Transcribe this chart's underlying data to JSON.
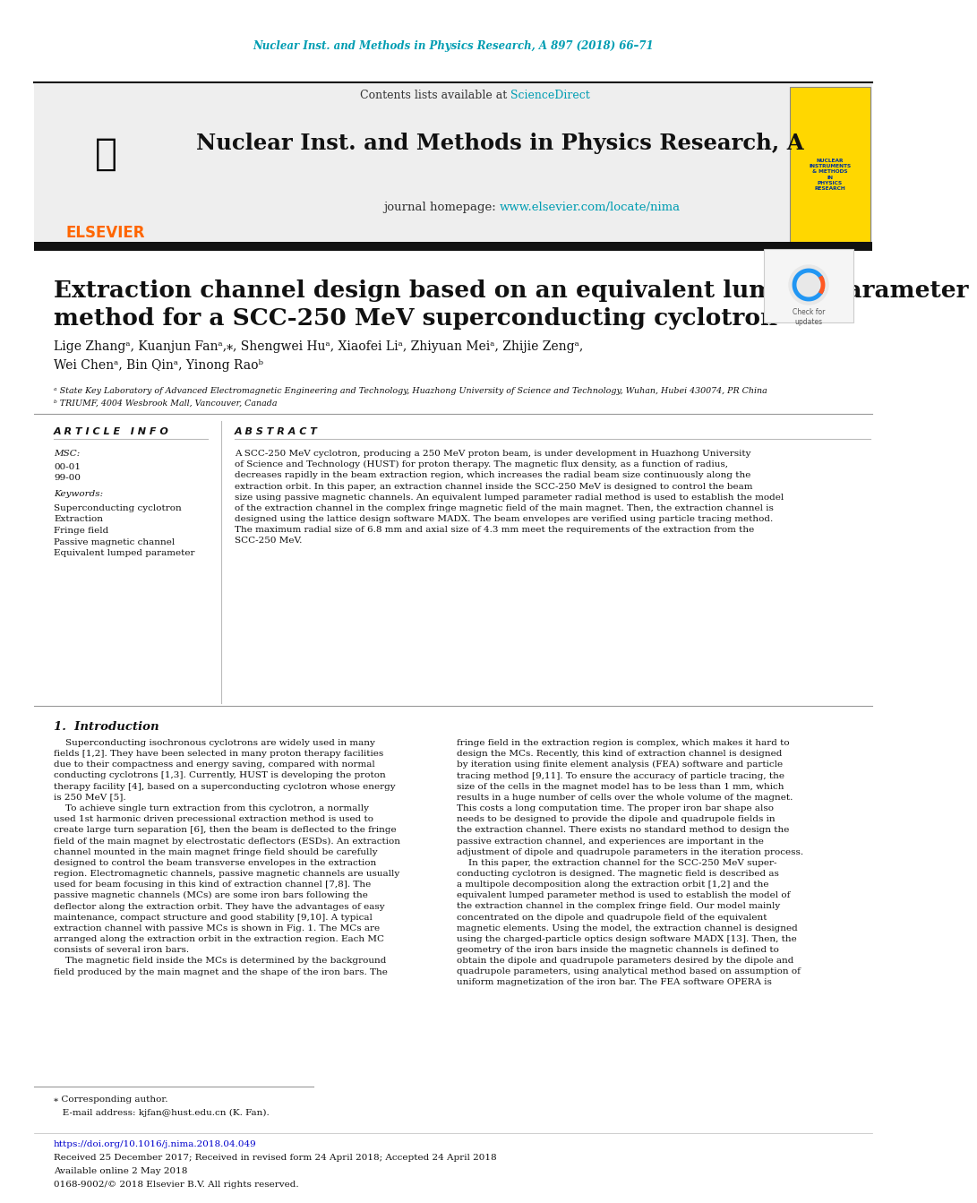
{
  "journal_header_text": "Nuclear Inst. and Methods in Physics Research, A 897 (2018) 66–71",
  "journal_header_color": "#009DB2",
  "contents_text": "Contents lists available at ",
  "sciencedirect_text": "ScienceDirect",
  "sciencedirect_color": "#009DB2",
  "journal_name": "Nuclear Inst. and Methods in Physics Research, A",
  "journal_homepage_prefix": "journal homepage: ",
  "journal_homepage_url": "www.elsevier.com/locate/nima",
  "journal_homepage_color": "#009DB2",
  "header_bg": "#EEEEEE",
  "black_bar_color": "#1A1A1A",
  "article_title": "Extraction channel design based on an equivalent lumped parameter\nmethod for a SCC-250 MeV superconducting cyclotron",
  "authors": "Lige Zhangᵃ, Kuanjun Fanᵃ,⁎, Shengwei Huᵃ, Xiaofei Liᵃ, Zhiyuan Meiᵃ, Zhijie Zengᵃ,\nWei Chenᵃ, Bin Qinᵃ, Yinong Raoᵇ",
  "affil_a": "ᵃ State Key Laboratory of Advanced Electromagnetic Engineering and Technology, Huazhong University of Science and Technology, Wuhan, Hubei 430074, PR China",
  "affil_b": "ᵇ TRIUMF, 4004 Wesbrook Mall, Vancouver, Canada",
  "article_info_title": "A R T I C L E   I N F O",
  "abstract_title": "A B S T R A C T",
  "msc_label": "MSC:",
  "msc_values": "00-01\n99-00",
  "keywords_label": "Keywords:",
  "keywords_values": "Superconducting cyclotron\nExtraction\nFringe field\nPassive magnetic channel\nEquivalent lumped parameter",
  "abstract_text": "A SCC-250 MeV cyclotron, producing a 250 MeV proton beam, is under development in Huazhong University\nof Science and Technology (HUST) for proton therapy. The magnetic flux density, as a function of radius,\ndecreases rapidly in the beam extraction region, which increases the radial beam size continuously along the\nextraction orbit. In this paper, an extraction channel inside the SCC-250 MeV is designed to control the beam\nsize using passive magnetic channels. An equivalent lumped parameter radial method is used to establish the model\nof the extraction channel in the complex fringe magnetic field of the main magnet. Then, the extraction channel is\ndesigned using the lattice design software MADX. The beam envelopes are verified using particle tracing method.\nThe maximum radial size of 6.8 mm and axial size of 4.3 mm meet the requirements of the extraction from the\nSCC-250 MeV.",
  "intro_title": "1.  Introduction",
  "intro_col1": "    Superconducting isochronous cyclotrons are widely used in many\nfields [1,2]. They have been selected in many proton therapy facilities\ndue to their compactness and energy saving, compared with normal\nconducting cyclotrons [1,3]. Currently, HUST is developing the proton\ntherapy facility [4], based on a superconducting cyclotron whose energy\nis 250 MeV [5].\n    To achieve single turn extraction from this cyclotron, a normally\nused 1st harmonic driven precessional extraction method is used to\ncreate large turn separation [6], then the beam is deflected to the fringe\nfield of the main magnet by electrostatic deflectors (ESDs). An extraction\nchannel mounted in the main magnet fringe field should be carefully\ndesigned to control the beam transverse envelopes in the extraction\nregion. Electromagnetic channels, passive magnetic channels are usually\nused for beam focusing in this kind of extraction channel [7,8]. The\npassive magnetic channels (MCs) are some iron bars following the\ndeflector along the extraction orbit. They have the advantages of easy\nmaintenance, compact structure and good stability [9,10]. A typical\nextraction channel with passive MCs is shown in Fig. 1. The MCs are\narranged along the extraction orbit in the extraction region. Each MC\nconsists of several iron bars.\n    The magnetic field inside the MCs is determined by the background\nfield produced by the main magnet and the shape of the iron bars. The",
  "intro_col2": "fringe field in the extraction region is complex, which makes it hard to\ndesign the MCs. Recently, this kind of extraction channel is designed\nby iteration using finite element analysis (FEA) software and particle\ntracing method [9,11]. To ensure the accuracy of particle tracing, the\nsize of the cells in the magnet model has to be less than 1 mm, which\nresults in a huge number of cells over the whole volume of the magnet.\nThis costs a long computation time. The proper iron bar shape also\nneeds to be designed to provide the dipole and quadrupole fields in\nthe extraction channel. There exists no standard method to design the\npassive extraction channel, and experiences are important in the\nadjustment of dipole and quadrupole parameters in the iteration process.\n    In this paper, the extraction channel for the SCC-250 MeV super-\nconducting cyclotron is designed. The magnetic field is described as\na multipole decomposition along the extraction orbit [1,2] and the\nequivalent lumped parameter method is used to establish the model of\nthe extraction channel in the complex fringe field. Our model mainly\nconcentrated on the dipole and quadrupole field of the equivalent\nmagnetic elements. Using the model, the extraction channel is designed\nusing the charged-particle optics design software MADX [13]. Then, the\ngeometry of the iron bars inside the magnetic channels is defined to\nobtain the dipole and quadrupole parameters desired by the dipole and\nquadrupole parameters, using analytical method based on assumption of\nuniform magnetization of the iron bar. The FEA software OPERA is",
  "doi_text": "https://doi.org/10.1016/j.nima.2018.04.049",
  "doi_color": "#0000CC",
  "received_text": "Received 25 December 2017; Received in revised form 24 April 2018; Accepted 24 April 2018",
  "available_text": "Available online 2 May 2018",
  "copyright_text": "0168-9002/© 2018 Elsevier B.V. All rights reserved.",
  "footnote_star": "⁎ Corresponding author.",
  "footnote_email": "   E-mail address: kjfan@hust.edu.cn (K. Fan).",
  "bg_color": "#FFFFFF",
  "text_color": "#000000"
}
